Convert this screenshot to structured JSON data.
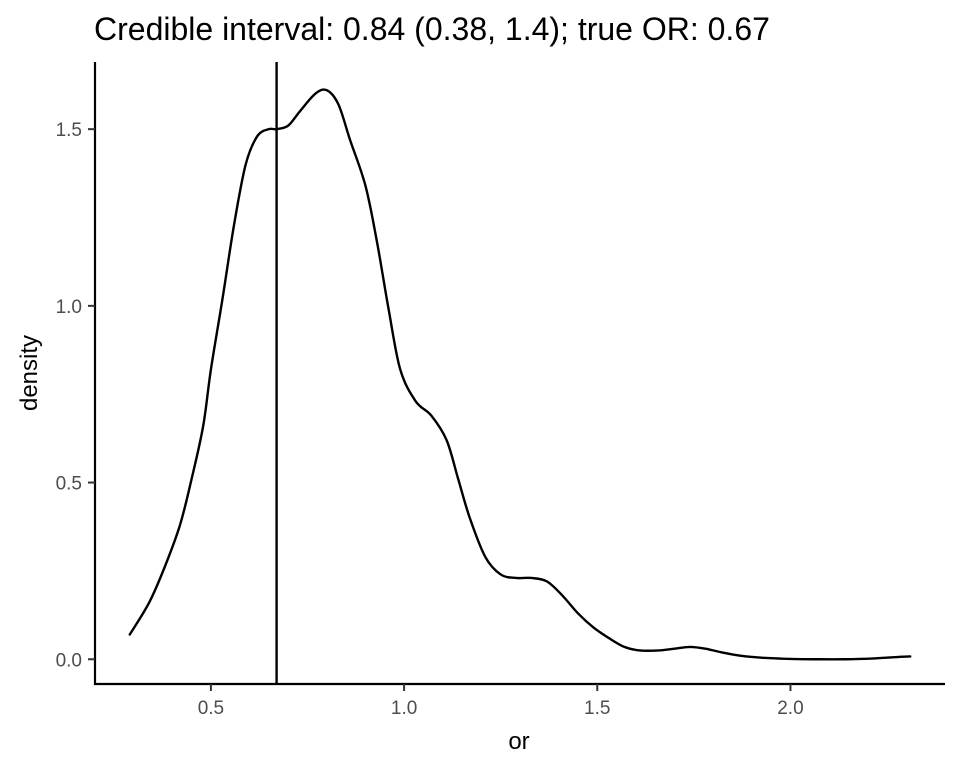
{
  "chart_data": {
    "type": "line",
    "title": "Credible interval: 0.84 (0.38, 1.4); true OR: 0.67",
    "xlabel": "or",
    "ylabel": "density",
    "xlim": [
      0.2,
      2.4
    ],
    "ylim": [
      -0.07,
      1.69
    ],
    "x_ticks": [
      {
        "value": 0.5,
        "label": "0.5"
      },
      {
        "value": 1.0,
        "label": "1.0"
      },
      {
        "value": 1.5,
        "label": "1.5"
      },
      {
        "value": 2.0,
        "label": "2.0"
      }
    ],
    "y_ticks": [
      {
        "value": 0.0,
        "label": "0.0"
      },
      {
        "value": 0.5,
        "label": "0.5"
      },
      {
        "value": 1.0,
        "label": "1.0"
      },
      {
        "value": 1.5,
        "label": "1.5"
      }
    ],
    "reference_line": {
      "orientation": "vertical",
      "x": 0.67
    },
    "grid": false,
    "series": [
      {
        "x": [
          0.29,
          0.34,
          0.38,
          0.42,
          0.45,
          0.48,
          0.5,
          0.53,
          0.56,
          0.59,
          0.62,
          0.65,
          0.67,
          0.7,
          0.73,
          0.77,
          0.8,
          0.83,
          0.86,
          0.9,
          0.93,
          0.96,
          0.99,
          1.03,
          1.07,
          1.11,
          1.14,
          1.17,
          1.21,
          1.25,
          1.29,
          1.33,
          1.37,
          1.41,
          1.45,
          1.49,
          1.53,
          1.57,
          1.61,
          1.66,
          1.7,
          1.74,
          1.78,
          1.82,
          1.87,
          1.93,
          2.0,
          2.07,
          2.14,
          2.21,
          2.27,
          2.31
        ],
        "y": [
          0.07,
          0.16,
          0.26,
          0.38,
          0.51,
          0.66,
          0.82,
          1.02,
          1.23,
          1.4,
          1.48,
          1.5,
          1.5,
          1.51,
          1.55,
          1.6,
          1.61,
          1.57,
          1.47,
          1.34,
          1.18,
          0.99,
          0.82,
          0.73,
          0.69,
          0.62,
          0.51,
          0.4,
          0.29,
          0.24,
          0.23,
          0.23,
          0.22,
          0.18,
          0.13,
          0.09,
          0.06,
          0.035,
          0.025,
          0.025,
          0.03,
          0.035,
          0.03,
          0.02,
          0.01,
          0.004,
          0.001,
          0.0,
          0.0,
          0.002,
          0.006,
          0.008
        ]
      }
    ]
  }
}
